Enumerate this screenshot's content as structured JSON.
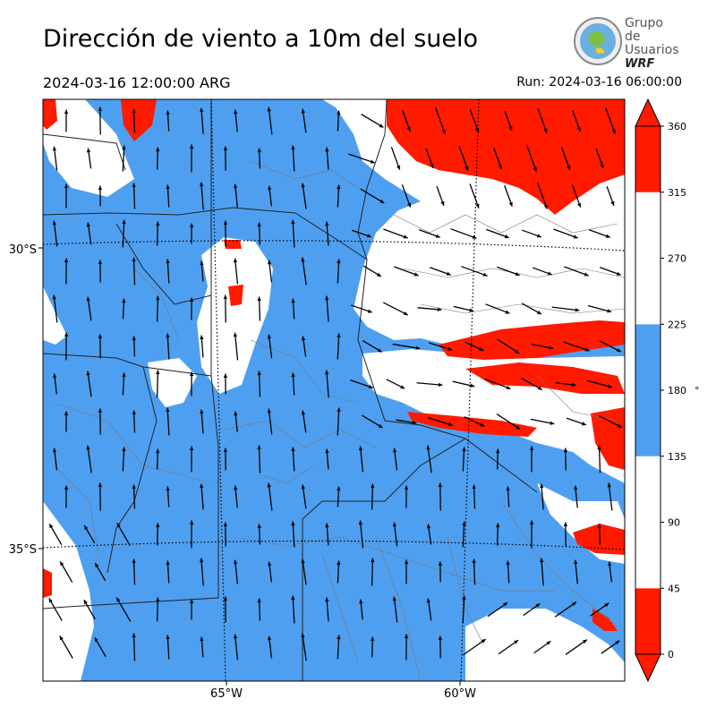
{
  "header": {
    "title": "Dirección de viento a 10m del suelo",
    "valid_time": "2024-03-16 12:00:00 ARG",
    "run": "Run: 2024-03-16 06:00:00"
  },
  "logo": {
    "line1": "Grupo de",
    "line2": "Usuarios",
    "line3": "WRF"
  },
  "map": {
    "lat_labels": [
      "30°S",
      "35°S"
    ],
    "lon_labels": [
      "65°W",
      "60°W"
    ]
  },
  "colorbar": {
    "ticks": [
      "0",
      "45",
      "90",
      "135",
      "180",
      "225",
      "270",
      "315",
      "360"
    ],
    "unit": "°",
    "bands": [
      {
        "from": 0,
        "to": 45,
        "color": "#ff1a00"
      },
      {
        "from": 45,
        "to": 135,
        "color": "#ffffff"
      },
      {
        "from": 135,
        "to": 225,
        "color": "#4f9ff0"
      },
      {
        "from": 225,
        "to": 315,
        "color": "#ffffff"
      },
      {
        "from": 315,
        "to": 360,
        "color": "#ff1a00"
      }
    ]
  },
  "colors": {
    "red": "#ff1a00",
    "blue": "#4f9ff0",
    "white": "#ffffff"
  }
}
